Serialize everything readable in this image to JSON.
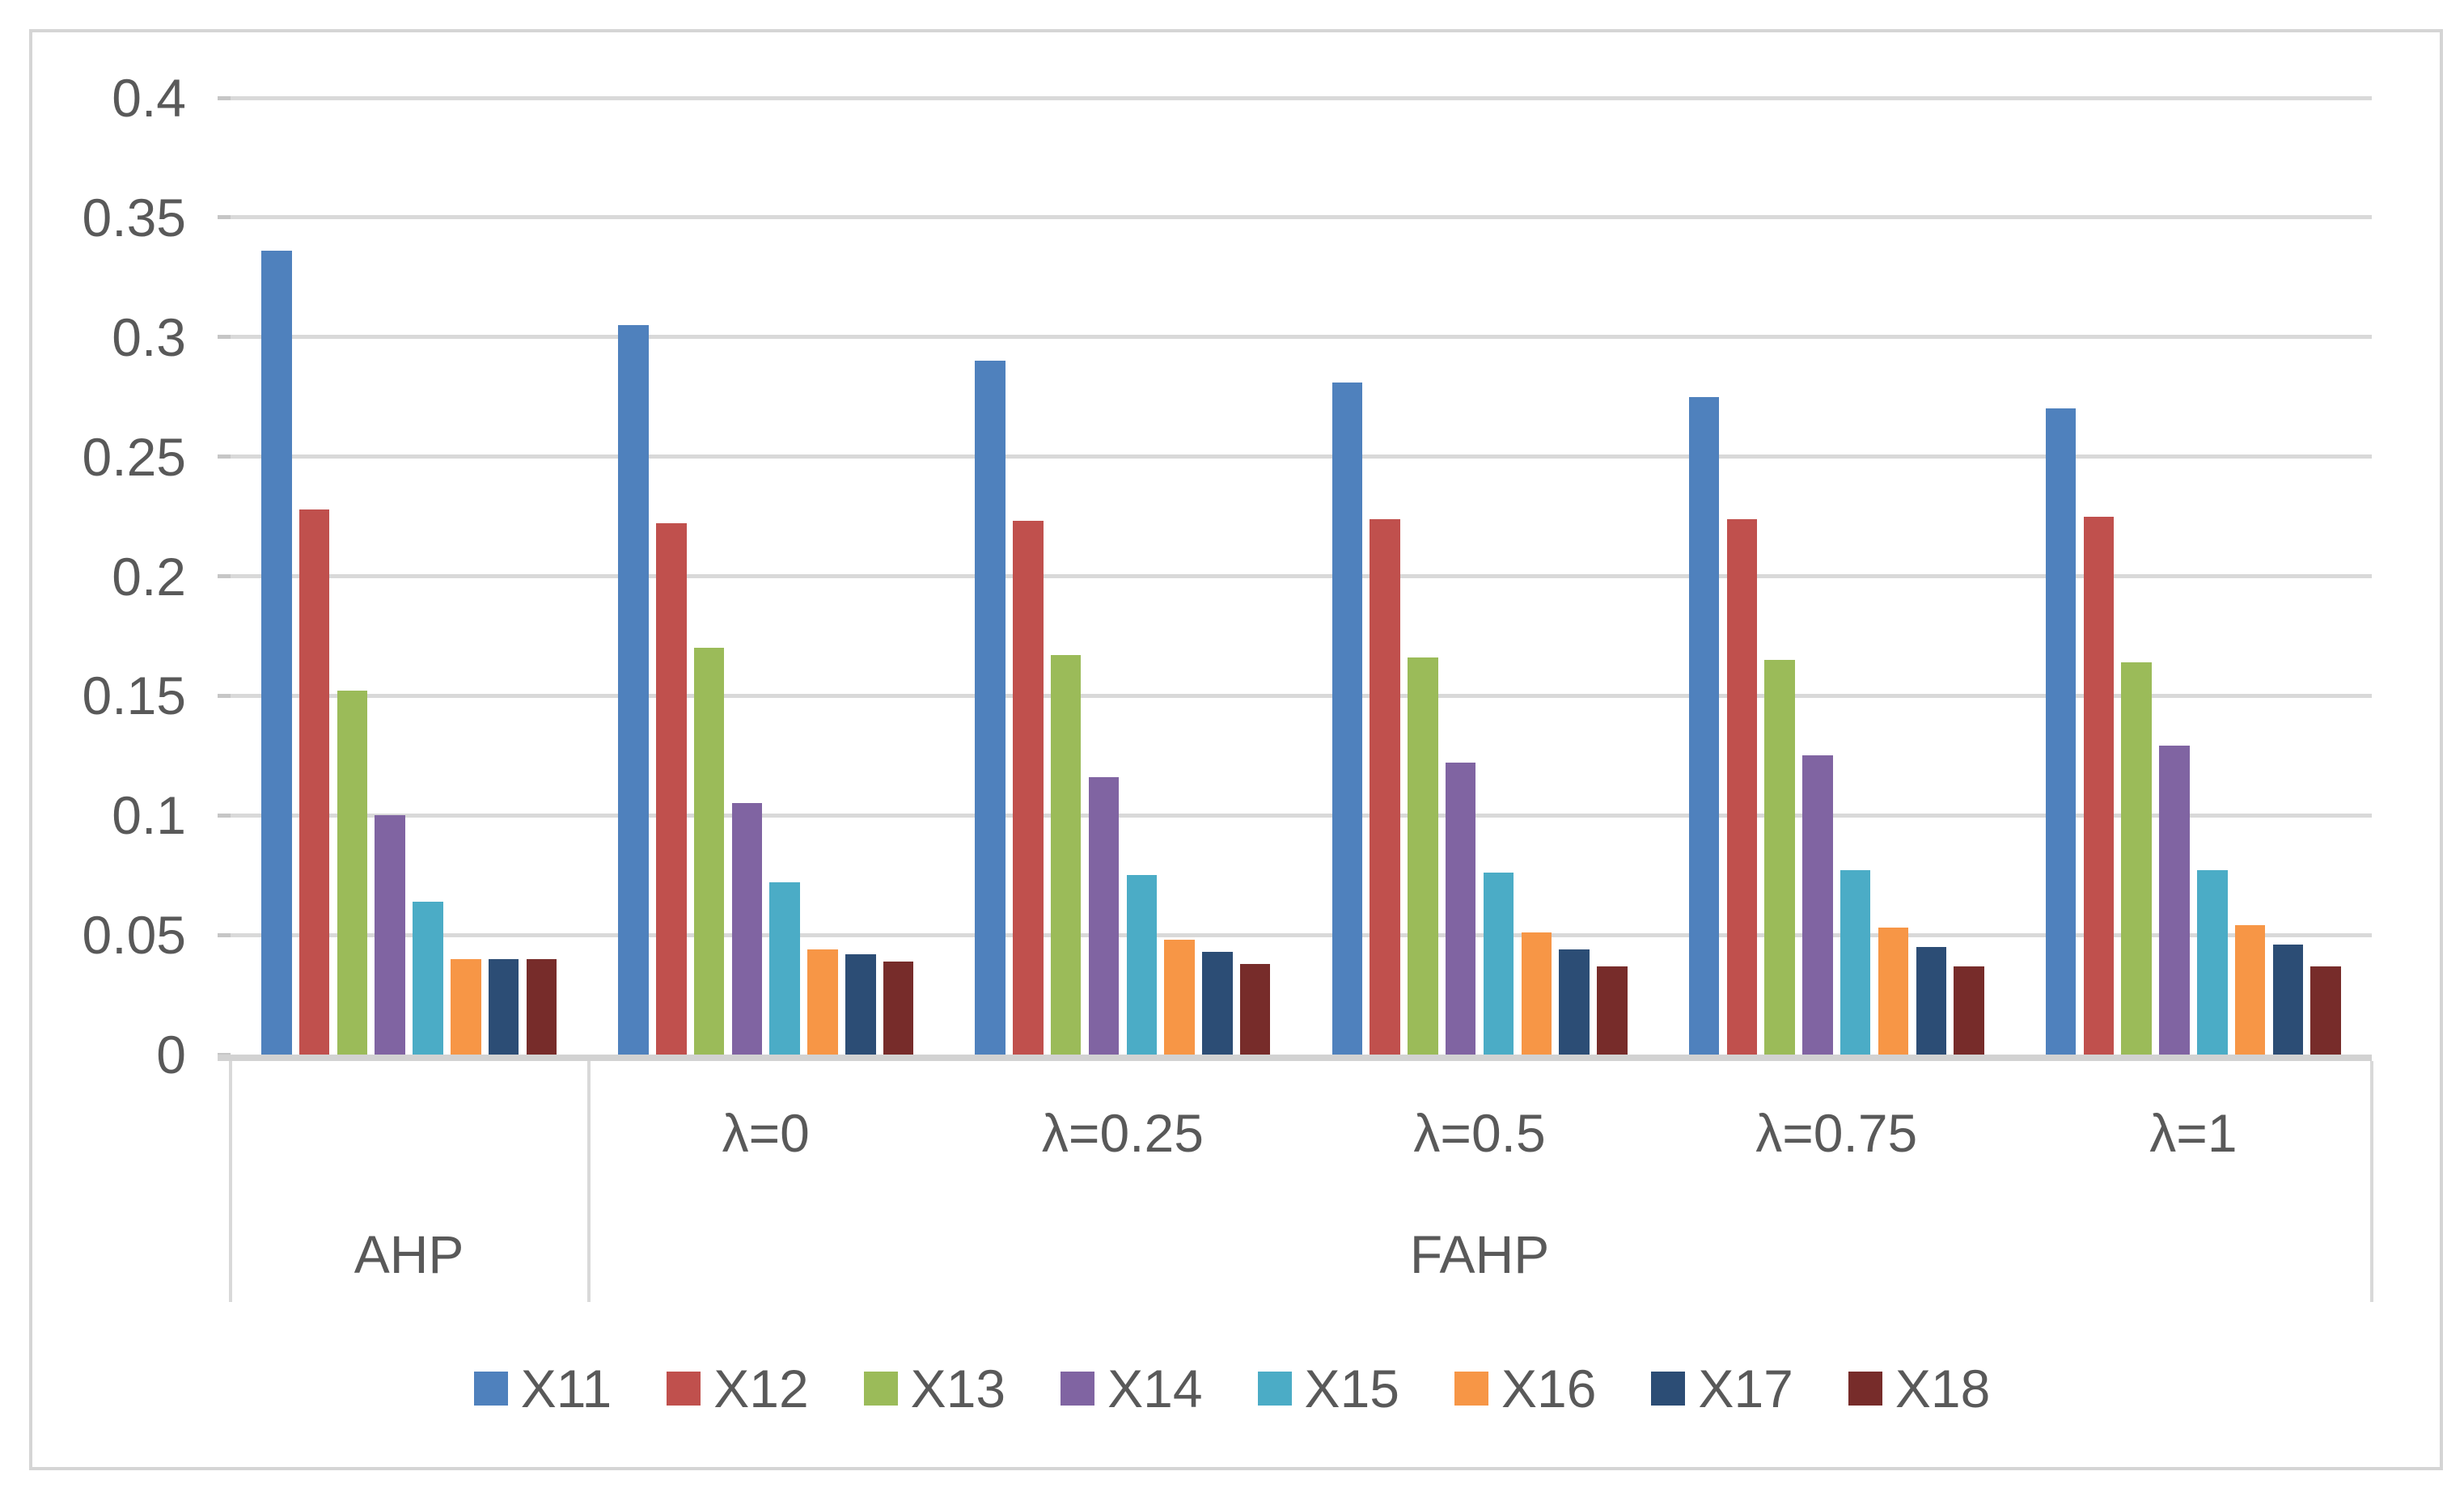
{
  "figure": {
    "background": "#ffffff",
    "frame_color": "#d5d5d5",
    "grid_color": "#d9d9d9",
    "tick_color": "#c6c6c6",
    "axis_color": "#d2d2d2",
    "text_color": "#595959"
  },
  "chart_data": {
    "type": "bar",
    "title": "",
    "xlabel": "",
    "ylabel": "",
    "grid": true,
    "legend_position": "bottom",
    "y_axis": {
      "min": 0,
      "max": 0.4,
      "step": 0.05,
      "tick_labels": [
        "0",
        "0.05",
        "0.1",
        "0.15",
        "0.2",
        "0.25",
        "0.3",
        "0.35",
        "0.4"
      ]
    },
    "categories": [
      "AHP",
      "λ=0",
      "λ=0.25",
      "λ=0.5",
      "λ=0.75",
      "λ=1"
    ],
    "x_axis_rows": {
      "sub_labels": [
        "",
        "λ=0",
        "λ=0.25",
        "λ=0.5",
        "λ=0.75",
        "λ=1"
      ],
      "group_labels": [
        {
          "label": "AHP",
          "span_categories": [
            "AHP"
          ]
        },
        {
          "label": "FAHP",
          "span_categories": [
            "λ=0",
            "λ=0.25",
            "λ=0.5",
            "λ=0.75",
            "λ=1"
          ]
        }
      ]
    },
    "series": [
      {
        "name": "X11",
        "color": "#4f81bd",
        "values": [
          0.336,
          0.305,
          0.29,
          0.281,
          0.275,
          0.27
        ]
      },
      {
        "name": "X12",
        "color": "#c0504d",
        "values": [
          0.228,
          0.222,
          0.223,
          0.224,
          0.224,
          0.225
        ]
      },
      {
        "name": "X13",
        "color": "#9bbb59",
        "values": [
          0.152,
          0.17,
          0.167,
          0.166,
          0.165,
          0.164
        ]
      },
      {
        "name": "X14",
        "color": "#8064a2",
        "values": [
          0.1,
          0.105,
          0.116,
          0.122,
          0.125,
          0.129
        ]
      },
      {
        "name": "X15",
        "color": "#4bacc6",
        "values": [
          0.064,
          0.072,
          0.075,
          0.076,
          0.077,
          0.077
        ]
      },
      {
        "name": "X16",
        "color": "#f79646",
        "values": [
          0.04,
          0.044,
          0.048,
          0.051,
          0.053,
          0.054
        ]
      },
      {
        "name": "X17",
        "color": "#2c4d75",
        "values": [
          0.04,
          0.042,
          0.043,
          0.044,
          0.045,
          0.046
        ]
      },
      {
        "name": "X18",
        "color": "#772c2a",
        "values": [
          0.04,
          0.039,
          0.038,
          0.037,
          0.037,
          0.037
        ]
      }
    ],
    "legend_entries": [
      "X11",
      "X12",
      "X13",
      "X14",
      "X15",
      "X16",
      "X17",
      "X18"
    ]
  }
}
